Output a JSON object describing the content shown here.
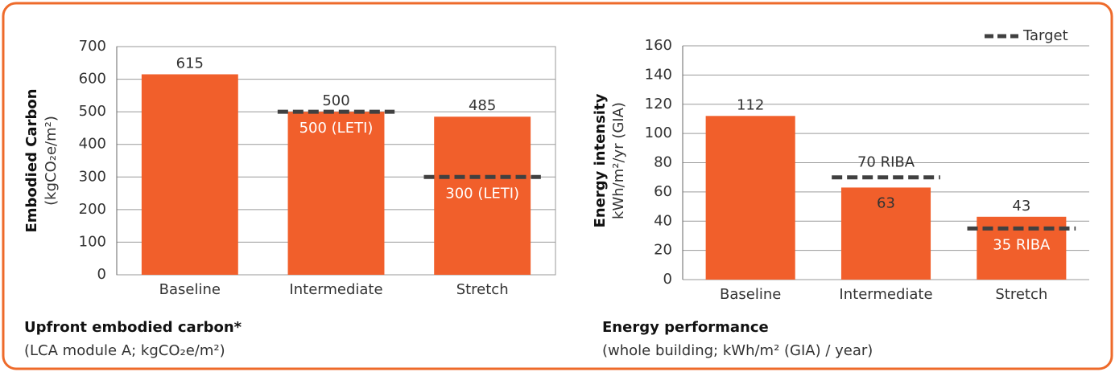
{
  "chart_data": [
    {
      "type": "bar",
      "ylabel": "Embodied Carbon",
      "ylabel_unit": "(kgCO₂e/m²)",
      "caption": "Upfront embodied carbon*",
      "caption_note": "(LCA module A; kgCO₂e/m²)",
      "categories": [
        "Baseline",
        "Intermediate",
        "Stretch"
      ],
      "values": [
        615,
        500,
        485
      ],
      "color": "#f15f2b",
      "target": {
        "color": "#404040",
        "values": [
          null,
          500,
          300
        ],
        "value_labels": [
          null,
          "500 (LETI)",
          "300 (LETI)"
        ]
      },
      "ylim": [
        0,
        700
      ],
      "yticks": [
        0,
        100,
        200,
        300,
        400,
        500,
        600,
        700
      ],
      "grid": true,
      "frame": true
    },
    {
      "type": "bar",
      "ylabel": "Energy intensity",
      "ylabel_unit": "kWh/m²/yr (GIA)",
      "caption": "Energy performance",
      "caption_note": "(whole building; kWh/m² (GIA) / year)",
      "categories": [
        "Baseline",
        "Intermediate",
        "Stretch"
      ],
      "values": [
        112,
        63,
        43
      ],
      "color": "#f15f2b",
      "target": {
        "name": "Target",
        "color": "#404040",
        "values": [
          null,
          70,
          35
        ],
        "value_labels": [
          null,
          "70 RIBA",
          "35 RIBA"
        ]
      },
      "ylim": [
        0,
        160
      ],
      "yticks": [
        0,
        20,
        40,
        60,
        80,
        100,
        120,
        140,
        160
      ],
      "grid": true,
      "frame": false,
      "legend": "top-right"
    }
  ]
}
